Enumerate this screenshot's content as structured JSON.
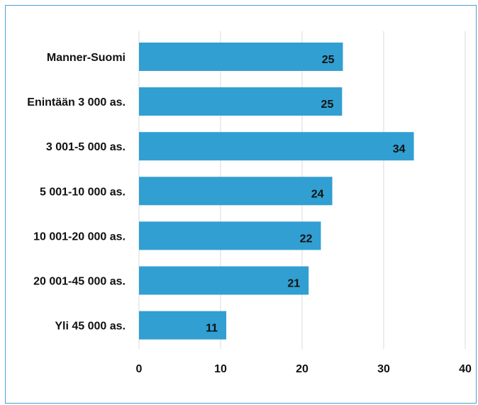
{
  "chart_data": {
    "type": "bar",
    "orientation": "horizontal",
    "categories": [
      "Manner-Suomi",
      "Enintään 3 000 as.",
      "3 001-5 000 as.",
      "5 001-10 000 as.",
      "10 001-20 000 as.",
      "20 001-45 000 as.",
      "Yli 45 000 as."
    ],
    "values": [
      25,
      25,
      34,
      24,
      22,
      21,
      11
    ],
    "data_labels": [
      "25",
      "25",
      "34",
      "24",
      "22",
      "21",
      "11"
    ],
    "xlim": [
      0,
      40
    ],
    "x_ticks": [
      0,
      10,
      20,
      30,
      40
    ],
    "x_tick_labels": [
      "0",
      "10",
      "20",
      "30",
      "40"
    ],
    "grid": true,
    "legend": "none",
    "title": "",
    "xlabel": "",
    "ylabel": "",
    "bar_color": "#319fd1",
    "frame_color": "#4aa3d3",
    "grid_color": "#d9d9d9",
    "bar_values_exact": [
      25.0,
      24.9,
      33.7,
      23.7,
      22.3,
      20.8,
      10.7
    ]
  }
}
